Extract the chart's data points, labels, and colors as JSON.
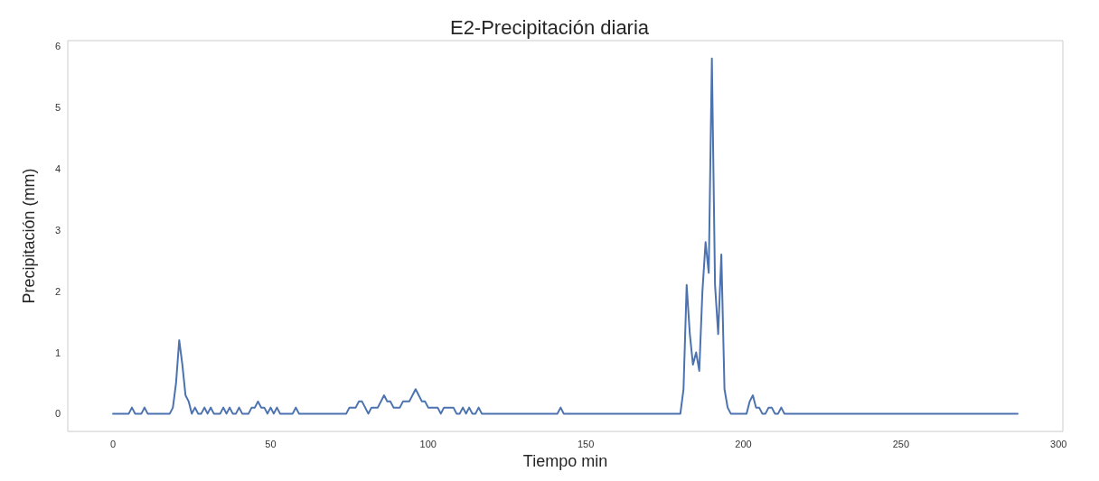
{
  "chart_data": {
    "type": "line",
    "title": "E2-Precipitación diaria",
    "xlabel": "Tiempo min",
    "ylabel": "Precipitación (mm)",
    "series": [
      {
        "color": "#4c72b0",
        "x": [
          0,
          5,
          6,
          7,
          9,
          10,
          11,
          18,
          19,
          20,
          21,
          22,
          23,
          24,
          25,
          26,
          27,
          28,
          29,
          30,
          31,
          32,
          34,
          35,
          36,
          37,
          38,
          39,
          40,
          41,
          43,
          44,
          45,
          46,
          47,
          48,
          49,
          50,
          51,
          52,
          53,
          57,
          58,
          59,
          74,
          75,
          77,
          78,
          79,
          80,
          81,
          82,
          84,
          85,
          86,
          87,
          88,
          89,
          91,
          92,
          94,
          96,
          97,
          98,
          99,
          100,
          103,
          104,
          105,
          108,
          109,
          110,
          111,
          112,
          113,
          114,
          115,
          116,
          117,
          141,
          142,
          143,
          180,
          181,
          182,
          183,
          184,
          185,
          186,
          187,
          188,
          189,
          190,
          191,
          192,
          193,
          194,
          195,
          196,
          201,
          202,
          203,
          204,
          205,
          206,
          207,
          208,
          209,
          210,
          211,
          212,
          213,
          287
        ],
        "values": [
          0,
          0,
          0.1,
          0,
          0,
          0.1,
          0,
          0,
          0.1,
          0.5,
          1.2,
          0.8,
          0.3,
          0.2,
          0,
          0.1,
          0,
          0,
          0.1,
          0,
          0.1,
          0,
          0,
          0.1,
          0,
          0.1,
          0,
          0,
          0.1,
          0,
          0,
          0.1,
          0.1,
          0.2,
          0.1,
          0.1,
          0,
          0.1,
          0,
          0.1,
          0,
          0,
          0.1,
          0,
          0,
          0.1,
          0.1,
          0.2,
          0.2,
          0.1,
          0,
          0.1,
          0.1,
          0.2,
          0.3,
          0.2,
          0.2,
          0.1,
          0.1,
          0.2,
          0.2,
          0.4,
          0.3,
          0.2,
          0.2,
          0.1,
          0.1,
          0,
          0.1,
          0.1,
          0,
          0,
          0.1,
          0,
          0.1,
          0,
          0,
          0.1,
          0,
          0,
          0.1,
          0,
          0,
          0.4,
          2.1,
          1.3,
          0.8,
          1.0,
          0.7,
          2.0,
          2.8,
          2.3,
          5.8,
          2.1,
          1.3,
          2.6,
          0.4,
          0.1,
          0,
          0,
          0.2,
          0.3,
          0.1,
          0.1,
          0,
          0,
          0.1,
          0.1,
          0,
          0,
          0.1,
          0,
          0
        ]
      }
    ],
    "xlim": [
      -14.35,
      301.35
    ],
    "ylim": [
      -0.29,
      6.09
    ],
    "xticks": [
      0,
      50,
      100,
      150,
      200,
      250,
      300
    ],
    "yticks": [
      0,
      1,
      2,
      3,
      4,
      5,
      6
    ],
    "grid": false,
    "marker": "none",
    "line_style": "solid"
  }
}
